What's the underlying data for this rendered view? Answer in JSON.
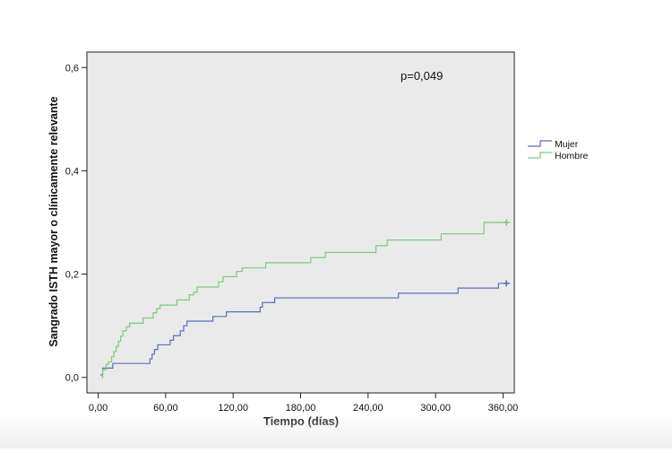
{
  "chart_data": {
    "type": "line",
    "step": true,
    "xlabel": "Tiempo (días)",
    "ylabel": "Sangrado ISTH mayor o clínicamente relevante",
    "xlim": [
      -10,
      370
    ],
    "ylim": [
      -0.03,
      0.63
    ],
    "x_ticks": [
      {
        "value": 0,
        "label": "0,00"
      },
      {
        "value": 60,
        "label": "60,00"
      },
      {
        "value": 120,
        "label": "120,00"
      },
      {
        "value": 180,
        "label": "180,00"
      },
      {
        "value": 240,
        "label": "240,00"
      },
      {
        "value": 300,
        "label": "300,00"
      },
      {
        "value": 360,
        "label": "360,00"
      }
    ],
    "y_ticks": [
      {
        "value": 0.0,
        "label": "0,0"
      },
      {
        "value": 0.2,
        "label": "0,2"
      },
      {
        "value": 0.4,
        "label": "0,4"
      },
      {
        "value": 0.6,
        "label": "0,6"
      }
    ],
    "annotation": "p=0,049",
    "legend_position": "right",
    "plot_background": "#eaeaea",
    "series": [
      {
        "name": "Mujer",
        "color": "#5a6fb5",
        "censored_at": 363,
        "points": [
          [
            2,
            0.005
          ],
          [
            4,
            0.018
          ],
          [
            12,
            0.018
          ],
          [
            13,
            0.027
          ],
          [
            44,
            0.027
          ],
          [
            46,
            0.036
          ],
          [
            48,
            0.045
          ],
          [
            50,
            0.054
          ],
          [
            53,
            0.063
          ],
          [
            58,
            0.063
          ],
          [
            64,
            0.072
          ],
          [
            67,
            0.081
          ],
          [
            72,
            0.081
          ],
          [
            73,
            0.09
          ],
          [
            76,
            0.1
          ],
          [
            79,
            0.109
          ],
          [
            100,
            0.109
          ],
          [
            102,
            0.118
          ],
          [
            113,
            0.118
          ],
          [
            114,
            0.127
          ],
          [
            143,
            0.127
          ],
          [
            144,
            0.136
          ],
          [
            146,
            0.145
          ],
          [
            155,
            0.145
          ],
          [
            157,
            0.154
          ],
          [
            265,
            0.154
          ],
          [
            267,
            0.163
          ],
          [
            318,
            0.163
          ],
          [
            320,
            0.173
          ],
          [
            355,
            0.173
          ],
          [
            356,
            0.182
          ],
          [
            363,
            0.182
          ]
        ]
      },
      {
        "name": "Hombre",
        "color": "#7dc97d",
        "censored_at": 363,
        "points": [
          [
            3,
            0.0
          ],
          [
            4,
            0.015
          ],
          [
            7,
            0.025
          ],
          [
            9,
            0.03
          ],
          [
            12,
            0.04
          ],
          [
            14,
            0.05
          ],
          [
            16,
            0.06
          ],
          [
            18,
            0.07
          ],
          [
            20,
            0.08
          ],
          [
            22,
            0.09
          ],
          [
            25,
            0.098
          ],
          [
            28,
            0.105
          ],
          [
            38,
            0.105
          ],
          [
            40,
            0.115
          ],
          [
            47,
            0.115
          ],
          [
            49,
            0.125
          ],
          [
            52,
            0.133
          ],
          [
            55,
            0.14
          ],
          [
            68,
            0.14
          ],
          [
            70,
            0.15
          ],
          [
            80,
            0.15
          ],
          [
            81,
            0.16
          ],
          [
            85,
            0.165
          ],
          [
            88,
            0.175
          ],
          [
            106,
            0.175
          ],
          [
            107,
            0.185
          ],
          [
            111,
            0.195
          ],
          [
            122,
            0.195
          ],
          [
            123,
            0.205
          ],
          [
            128,
            0.212
          ],
          [
            148,
            0.212
          ],
          [
            149,
            0.222
          ],
          [
            188,
            0.222
          ],
          [
            189,
            0.232
          ],
          [
            201,
            0.232
          ],
          [
            202,
            0.242
          ],
          [
            246,
            0.242
          ],
          [
            247,
            0.255
          ],
          [
            256,
            0.255
          ],
          [
            257,
            0.266
          ],
          [
            304,
            0.266
          ],
          [
            305,
            0.278
          ],
          [
            342,
            0.278
          ],
          [
            343,
            0.3
          ],
          [
            363,
            0.3
          ]
        ]
      }
    ]
  }
}
